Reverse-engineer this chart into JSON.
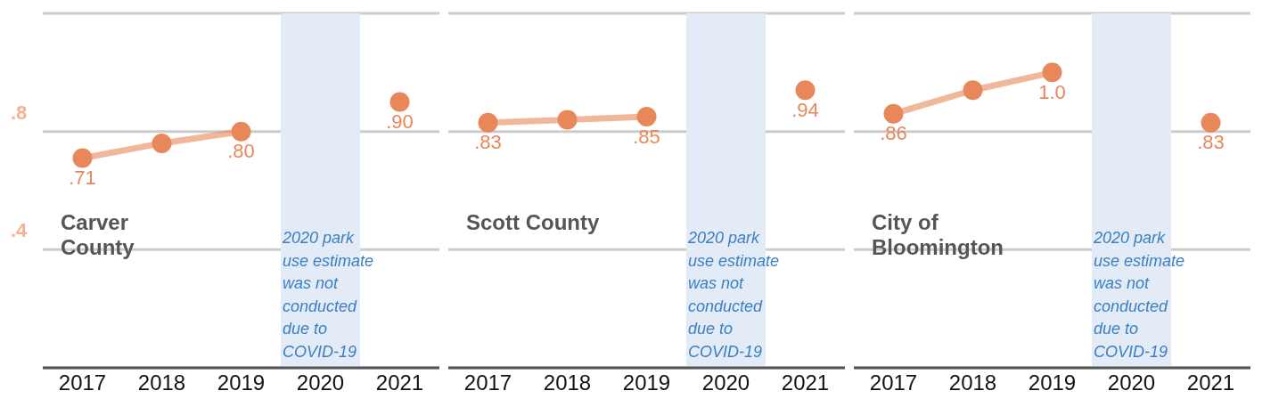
{
  "chart_data": [
    {
      "type": "line",
      "title": "Carver County",
      "categories": [
        "2017",
        "2018",
        "2019",
        "2020",
        "2021"
      ],
      "series": [
        {
          "color": "#e8875a",
          "values": [
            0.71,
            0.76,
            0.8,
            null,
            0.9
          ],
          "value_labels": [
            ".71",
            null,
            ".80",
            null,
            ".90"
          ]
        }
      ],
      "ylim": [
        0,
        1.2
      ],
      "yticks": [
        {
          "value": 0.4,
          "label": ".4"
        },
        {
          "value": 0.8,
          "label": ".8"
        },
        {
          "value": 1.2,
          "label": null
        }
      ],
      "grid": "y",
      "marker": "circle",
      "line_style": "solid",
      "bands": [
        {
          "axis": "x",
          "from": "2020",
          "to": "2020",
          "label": "2020 park use estimate was not conducted due to COVID-19",
          "color": "#e3ebf7"
        }
      ]
    },
    {
      "type": "line",
      "title": "Scott County",
      "categories": [
        "2017",
        "2018",
        "2019",
        "2020",
        "2021"
      ],
      "series": [
        {
          "color": "#e8875a",
          "values": [
            0.83,
            0.84,
            0.85,
            null,
            0.94
          ],
          "value_labels": [
            ".83",
            null,
            ".85",
            null,
            ".94"
          ]
        }
      ],
      "ylim": [
        0,
        1.2
      ],
      "yticks": [
        0.4,
        0.8,
        1.2
      ],
      "tick_labels": "x",
      "grid": "y",
      "marker": "circle",
      "line_style": "solid",
      "bands": [
        {
          "axis": "x",
          "from": "2020",
          "to": "2020",
          "label": "2020 park use estimate was not conducted due to COVID-19",
          "color": "#e3ebf7"
        }
      ]
    },
    {
      "type": "line",
      "title": "City of Bloomington",
      "categories": [
        "2017",
        "2018",
        "2019",
        "2020",
        "2021"
      ],
      "series": [
        {
          "color": "#e8875a",
          "values": [
            0.86,
            0.94,
            1.0,
            null,
            0.83
          ],
          "value_labels": [
            ".86",
            null,
            "1.0",
            null,
            ".83"
          ]
        }
      ],
      "ylim": [
        0,
        1.2
      ],
      "yticks": [
        0.4,
        0.8,
        1.2
      ],
      "tick_labels": "x",
      "grid": "y",
      "marker": "circle",
      "line_style": "solid",
      "bands": [
        {
          "axis": "x",
          "from": "2020",
          "to": "2020",
          "label": "2020 park use estimate was not conducted due to COVID-19",
          "color": "#e3ebf7"
        }
      ]
    }
  ]
}
